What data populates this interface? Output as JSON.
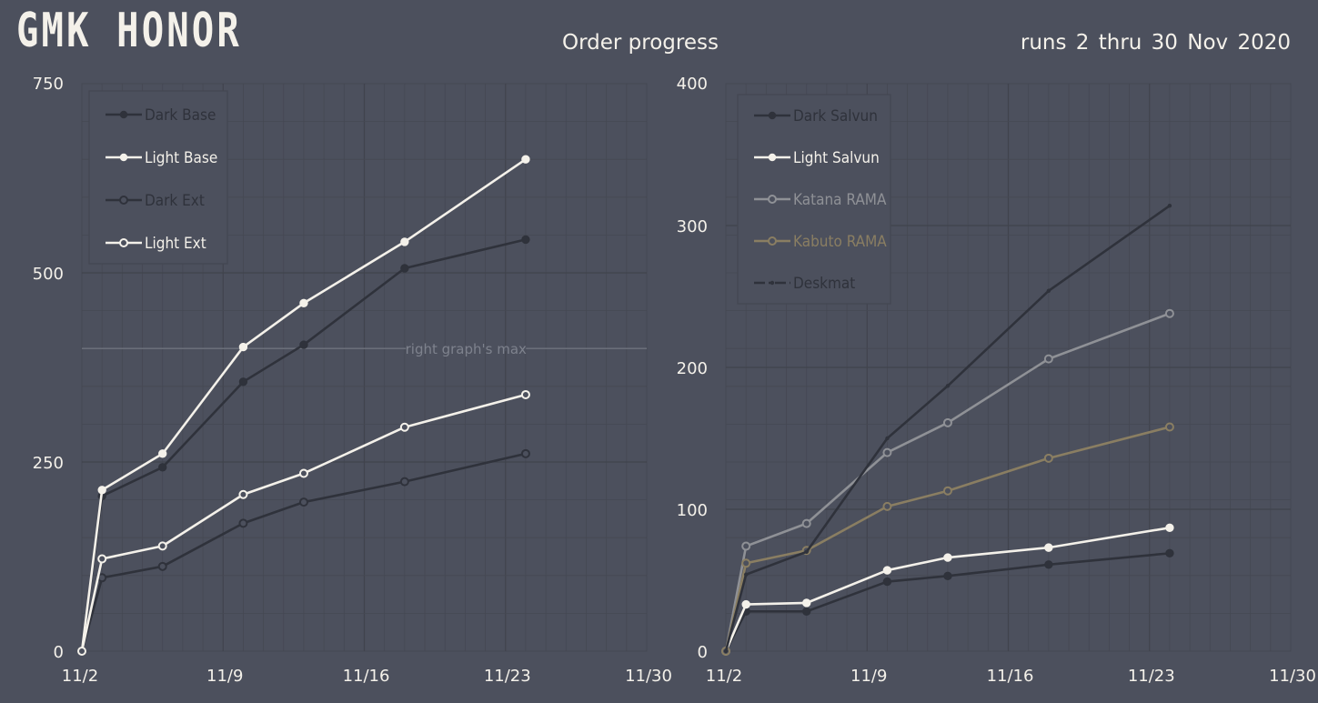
{
  "header": {
    "brand": "GMK HONOR",
    "title": "Order progress",
    "subtitle": "runs 2 thru 30 Nov 2020"
  },
  "colors": {
    "background": "#4c505d",
    "dark": "#2f323b",
    "light": "#f4f1ea",
    "katana": "#8f9196",
    "kabuto": "#8a7e62",
    "deskmat": "#2f323b"
  },
  "chart_data": [
    {
      "type": "line",
      "x_tick_labels": [
        "11/2",
        "11/9",
        "11/16",
        "11/23",
        "11/30"
      ],
      "xlim": [
        0,
        28
      ],
      "ylim": [
        0,
        750
      ],
      "y_ticks": [
        0,
        250,
        500,
        750
      ],
      "grid": true,
      "legend_position": "top-left",
      "reference_line": {
        "y": 400,
        "label": "right graph's max"
      },
      "x": [
        0,
        1,
        4,
        8,
        11,
        16,
        22
      ],
      "series": [
        {
          "name": "Dark Base",
          "color": "#2f323b",
          "marker": "filled",
          "values": [
            0,
            205,
            243,
            356,
            405,
            506,
            544
          ]
        },
        {
          "name": "Light Base",
          "color": "#f4f1ea",
          "marker": "filled",
          "values": [
            0,
            213,
            261,
            402,
            460,
            541,
            650
          ]
        },
        {
          "name": "Dark Ext",
          "color": "#2f323b",
          "marker": "hollow",
          "values": [
            0,
            97,
            112,
            169,
            197,
            224,
            261
          ]
        },
        {
          "name": "Light Ext",
          "color": "#f4f1ea",
          "marker": "hollow",
          "values": [
            0,
            122,
            139,
            207,
            235,
            296,
            339
          ]
        }
      ]
    },
    {
      "type": "line",
      "x_tick_labels": [
        "11/2",
        "11/9",
        "11/16",
        "11/23",
        "11/30"
      ],
      "xlim": [
        0,
        28
      ],
      "ylim": [
        0,
        400
      ],
      "y_ticks": [
        0,
        100,
        200,
        300,
        400
      ],
      "grid": true,
      "legend_position": "top-left",
      "x": [
        0,
        1,
        4,
        8,
        11,
        16,
        22
      ],
      "series": [
        {
          "name": "Dark Salvun",
          "color": "#2f323b",
          "marker": "filled",
          "values": [
            0,
            28,
            28,
            49,
            53,
            61,
            69
          ]
        },
        {
          "name": "Light Salvun",
          "color": "#f4f1ea",
          "marker": "filled",
          "values": [
            0,
            33,
            34,
            57,
            66,
            73,
            87
          ]
        },
        {
          "name": "Katana RAMA",
          "color": "#8f9196",
          "marker": "hollow",
          "values": [
            0,
            74,
            90,
            140,
            161,
            206,
            238
          ]
        },
        {
          "name": "Kabuto RAMA",
          "color": "#8a7e62",
          "marker": "hollow",
          "values": [
            0,
            62,
            71,
            102,
            113,
            136,
            158
          ]
        },
        {
          "name": "Deskmat",
          "color": "#2f323b",
          "marker": "dash-dot",
          "values": [
            0,
            54,
            70,
            150,
            187,
            254,
            314
          ]
        }
      ]
    }
  ]
}
